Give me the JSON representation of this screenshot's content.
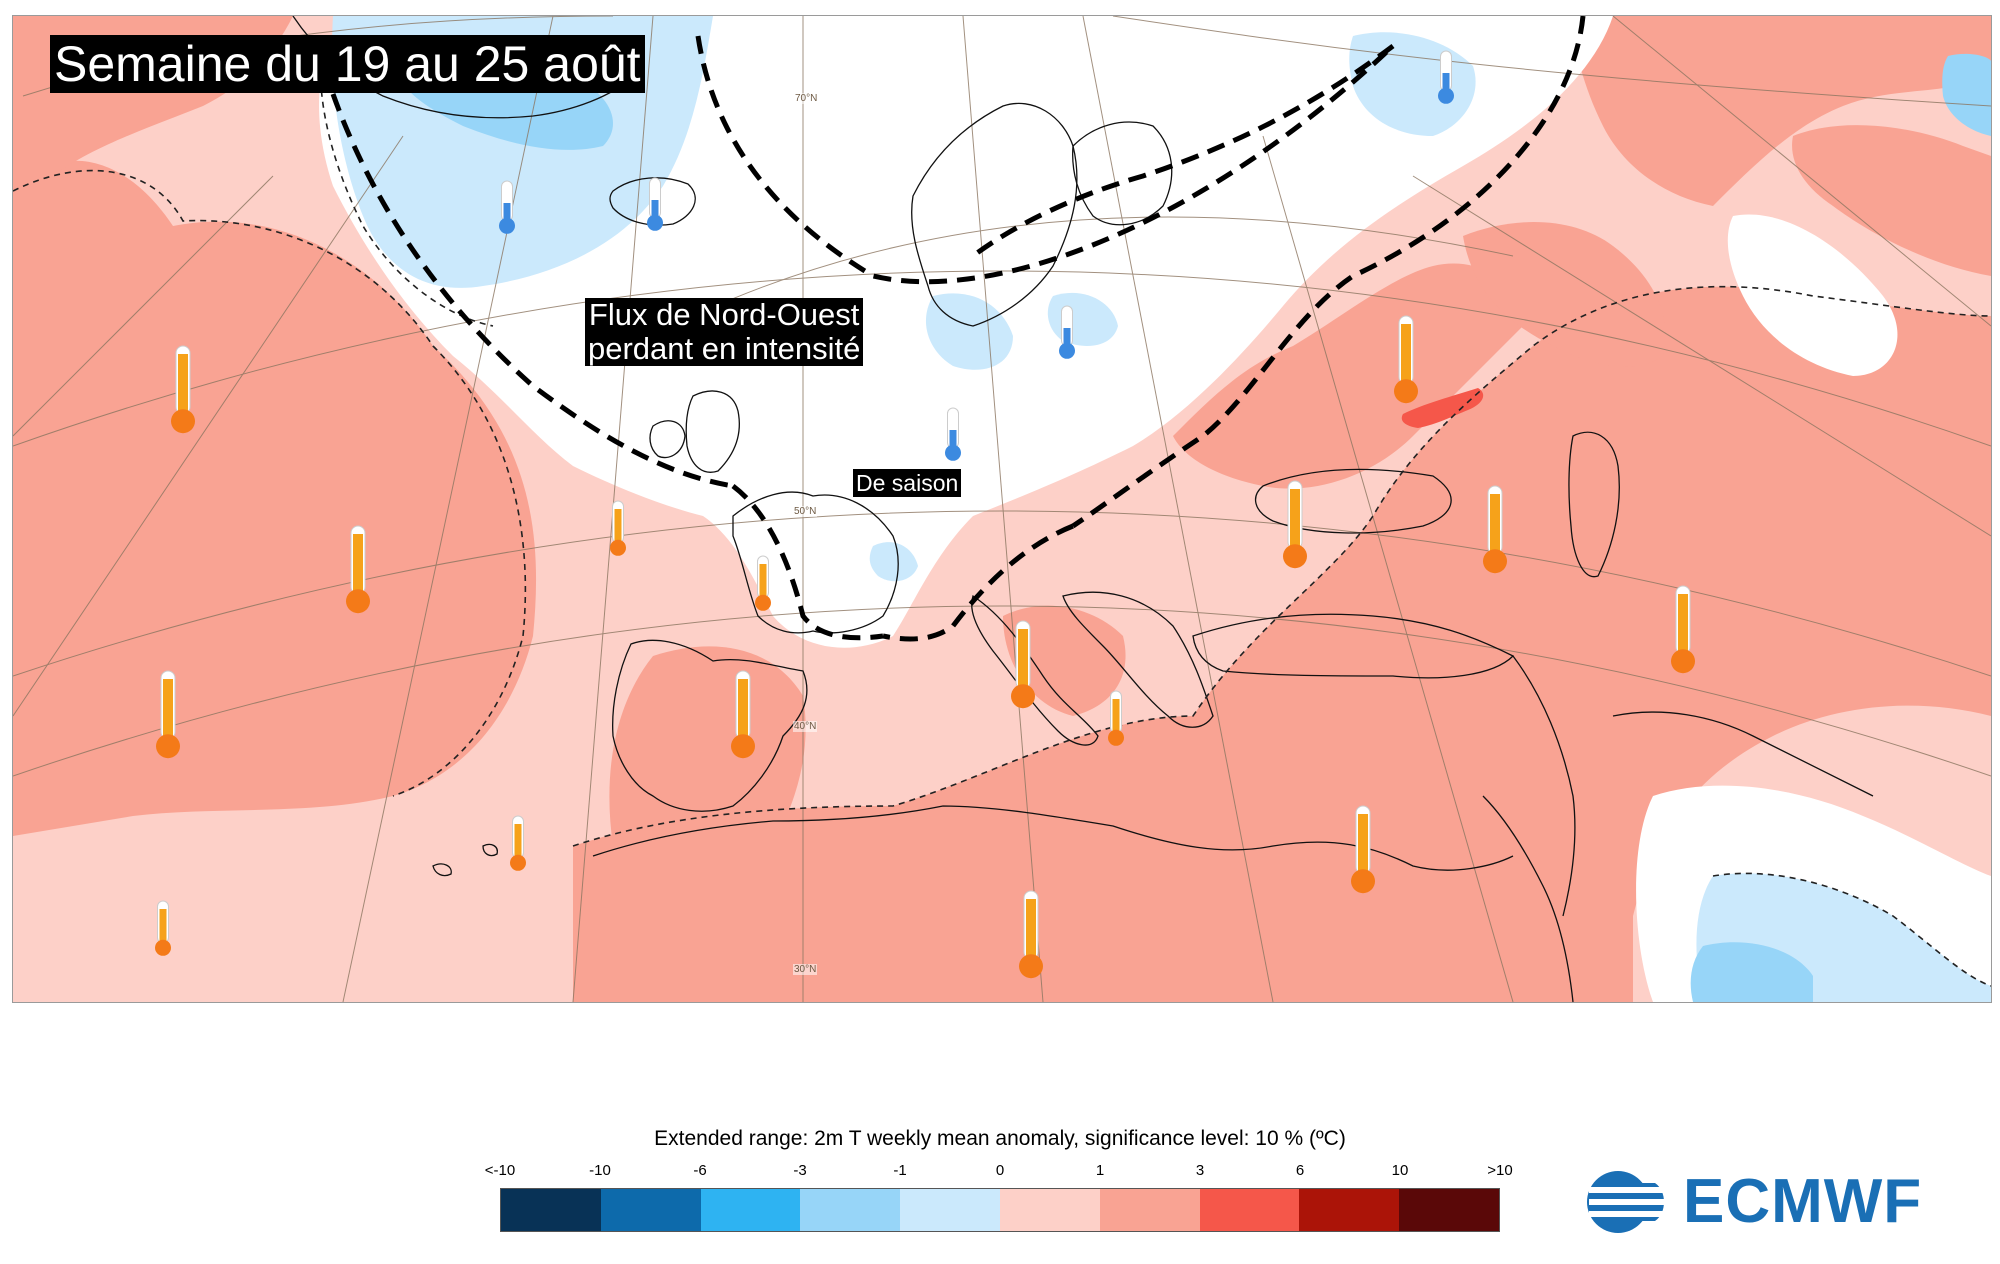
{
  "map": {
    "title": "Semaine du 19 au 25 août",
    "annotations": {
      "flux_line1": "Flux de Nord-Ouest",
      "flux_line2": "perdant en intensité",
      "de_saison": "De saison"
    },
    "latitude_labels": [
      "70°N",
      "50°N",
      "40°N",
      "30°N"
    ],
    "colors": {
      "ocean_background": "#fdd0c8",
      "warm_1_3": "#f9a393",
      "warm_3_6": "#f5574a",
      "cool_0_m1": "#cbe9fc",
      "cool_m1_m3": "#97d5f8",
      "neutral": "#ffffff",
      "coastline": "#111111",
      "graticule": "#8b7560",
      "thermometer_warm": "#f47a18",
      "thermometer_cool": "#3c8ae0"
    },
    "thermometers": [
      {
        "kind": "warm",
        "size": "large"
      },
      {
        "kind": "warm",
        "size": "large"
      },
      {
        "kind": "warm",
        "size": "large"
      },
      {
        "kind": "warm",
        "size": "small"
      },
      {
        "kind": "warm",
        "size": "small"
      },
      {
        "kind": "warm",
        "size": "large"
      },
      {
        "kind": "warm",
        "size": "small"
      },
      {
        "kind": "warm",
        "size": "small"
      },
      {
        "kind": "warm",
        "size": "large"
      },
      {
        "kind": "warm",
        "size": "small"
      },
      {
        "kind": "warm",
        "size": "large"
      },
      {
        "kind": "warm",
        "size": "large"
      },
      {
        "kind": "warm",
        "size": "large"
      },
      {
        "kind": "warm",
        "size": "large"
      },
      {
        "kind": "warm",
        "size": "large"
      },
      {
        "kind": "warm",
        "size": "large"
      },
      {
        "kind": "cool",
        "size": "small"
      },
      {
        "kind": "cool",
        "size": "small"
      },
      {
        "kind": "cool",
        "size": "small"
      },
      {
        "kind": "cool",
        "size": "small"
      },
      {
        "kind": "cool",
        "size": "small"
      }
    ]
  },
  "legend": {
    "title": "Extended range: 2m T weekly mean anomaly, significance level: 10 % (ºC)",
    "tick_labels": [
      "<-10",
      "-10",
      "-6",
      "-3",
      "-1",
      "0",
      "1",
      "3",
      "6",
      "10",
      ">10"
    ],
    "colors": [
      "#083256",
      "#0d6aab",
      "#2eb3f2",
      "#97d5f8",
      "#cbe9fc",
      "#fdd0c8",
      "#f9a393",
      "#f5574a",
      "#ab1408",
      "#5a0808"
    ]
  },
  "logo": {
    "text": "ECMWF",
    "color": "#1a6fb5"
  }
}
